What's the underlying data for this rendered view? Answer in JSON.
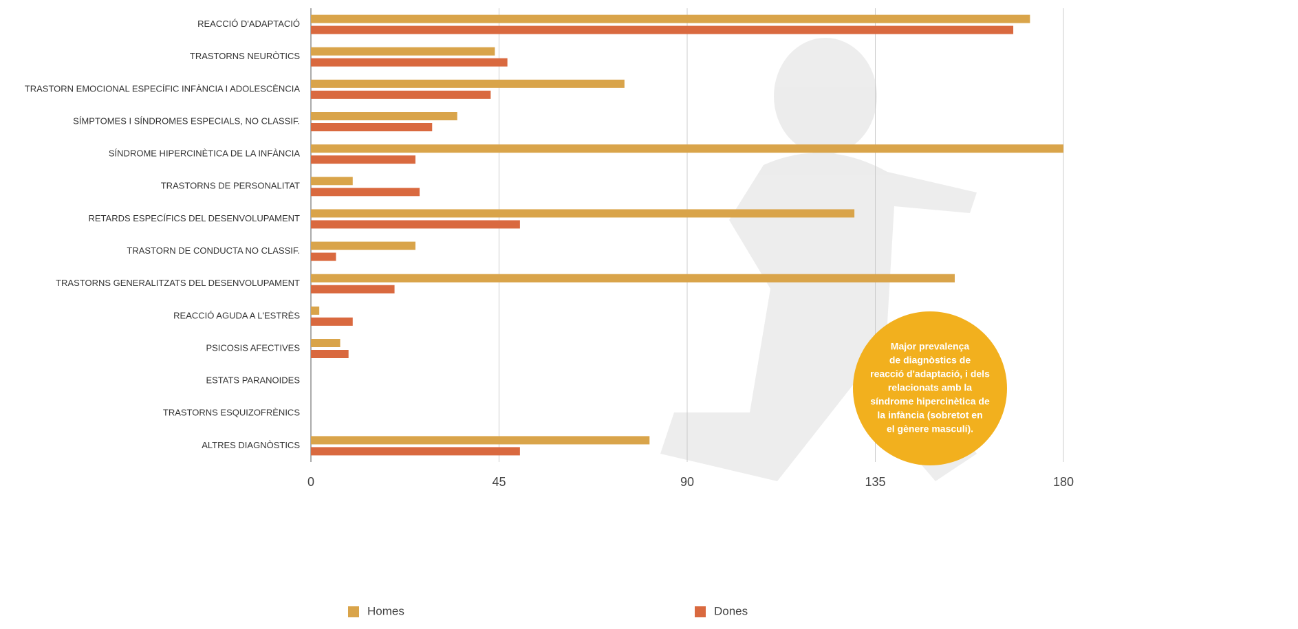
{
  "chart_data": {
    "type": "hbar",
    "categories": [
      "REACCIÓ D'ADAPTACIÓ",
      "TRASTORNS NEURÒTICS",
      "TRASTORN EMOCIONAL ESPECÍFIC INFÀNCIA I ADOLESCÈNCIA",
      "SÍMPTOMES I SÍNDROMES ESPECIALS, NO CLASSIF.",
      "SÍNDROME HIPERCINÈTICA DE LA INFÀNCIA",
      "TRASTORNS DE PERSONALITAT",
      "RETARDS ESPECÍFICS DEL DESENVOLUPAMENT",
      "TRASTORN DE CONDUCTA NO CLASSIF.",
      "TRASTORNS GENERALITZATS DEL DESENVOLUPAMENT",
      "REACCIÓ AGUDA A L'ESTRÈS",
      "PSICOSIS AFECTIVES",
      "ESTATS PARANOIDES",
      "TRASTORNS ESQUIZOFRÈNICS",
      "ALTRES DIAGNÒSTICS"
    ],
    "series": [
      {
        "name": "Homes",
        "color": "#d9a44a",
        "values": [
          172,
          44,
          75,
          35,
          180,
          10,
          130,
          25,
          154,
          2,
          7,
          0,
          0,
          81
        ]
      },
      {
        "name": "Dones",
        "color": "#d9693f",
        "values": [
          168,
          47,
          43,
          29,
          25,
          26,
          50,
          6,
          20,
          10,
          9,
          0,
          0,
          50
        ]
      }
    ],
    "xlim": [
      0,
      180
    ],
    "xticks": [
      0,
      45,
      90,
      135,
      180
    ],
    "grid": true,
    "legend": "bottom",
    "annotation": [
      "Major prevalença",
      "de diagnòstics de",
      "reacció d'adaptació, i dels",
      "relacionats amb la",
      "síndrome hipercinètica de",
      "la infància (sobretot en",
      "el gènere masculí)."
    ],
    "annotation_color": "#f2b01e"
  }
}
